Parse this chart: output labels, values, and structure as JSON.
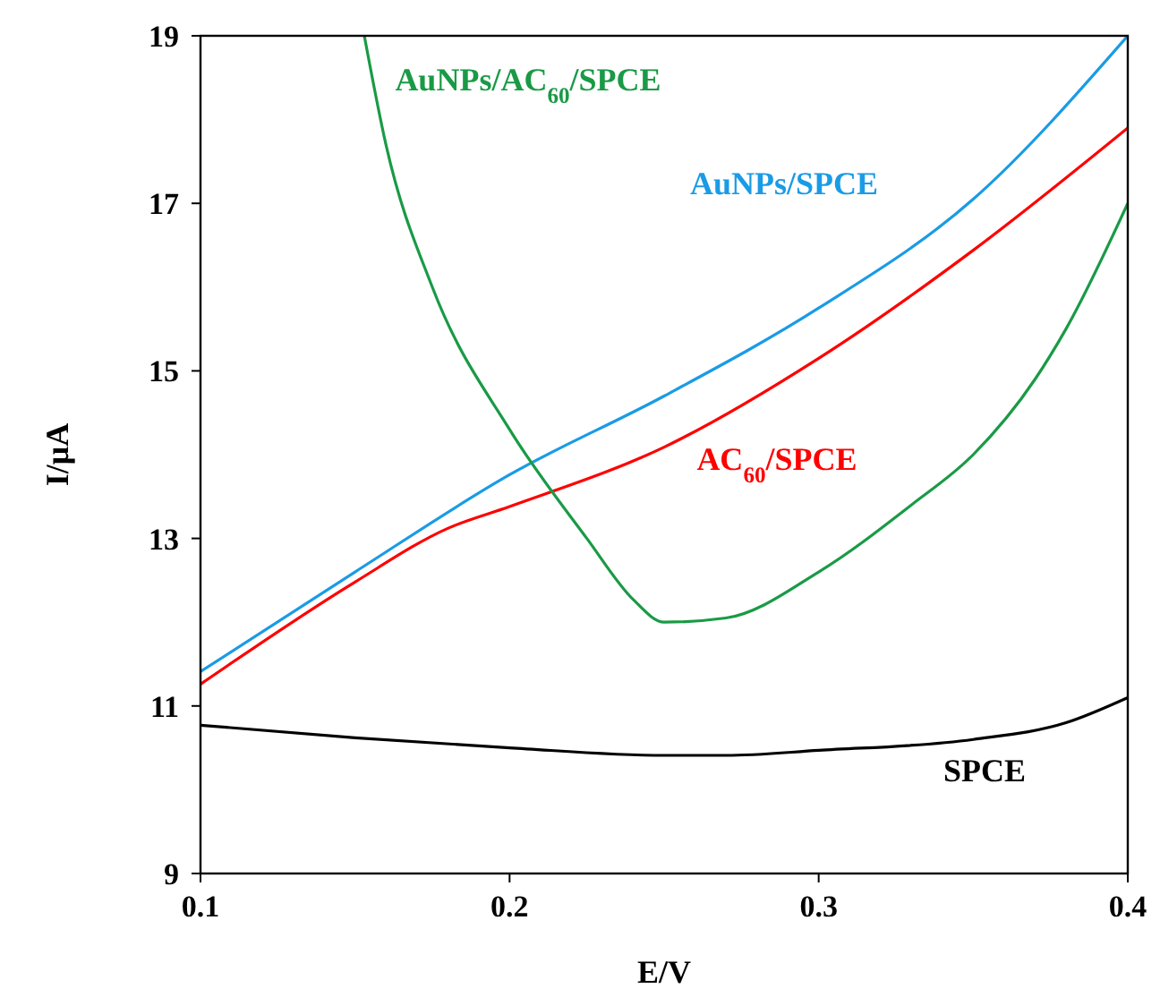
{
  "chart_data": {
    "type": "line",
    "xlabel": "E/V",
    "ylabel": "I/μA",
    "xlim": [
      0.1,
      0.4
    ],
    "xticks": [
      0.1,
      0.2,
      0.3,
      0.4
    ],
    "ylim": [
      9,
      19
    ],
    "yticks": [
      9,
      11,
      13,
      15,
      17,
      19
    ],
    "grid": false,
    "marker": "none",
    "line_style": "solid",
    "series": [
      {
        "name": "SPCE",
        "color": "#000000",
        "x": [
          0.1,
          0.15,
          0.2,
          0.25,
          0.27,
          0.3,
          0.35,
          0.38,
          0.4
        ],
        "values": [
          10.77,
          10.62,
          10.5,
          10.41,
          10.41,
          10.47,
          10.6,
          10.8,
          11.1
        ]
      },
      {
        "name": "AuNPs/SPCE",
        "color": "#1a9be6",
        "x": [
          0.1,
          0.15,
          0.2,
          0.25,
          0.3,
          0.35,
          0.4
        ],
        "values": [
          11.41,
          12.6,
          13.76,
          14.7,
          15.75,
          17.05,
          19.0
        ]
      },
      {
        "name": "AC$_{60}$/SPCE",
        "color": "#ff0000",
        "x": [
          0.1,
          0.15,
          0.18,
          0.2,
          0.25,
          0.3,
          0.35,
          0.4
        ],
        "values": [
          11.26,
          12.48,
          13.12,
          13.38,
          14.09,
          15.15,
          16.44,
          17.9
        ]
      },
      {
        "name": "AuNPs/AC$_{60}$/SPCE",
        "color": "#1a9a46",
        "x": [
          0.153,
          0.16,
          0.175,
          0.2,
          0.225,
          0.24,
          0.25,
          0.27,
          0.3,
          0.33,
          0.35,
          0.37,
          0.38,
          0.4
        ],
        "values": [
          19.0,
          17.7,
          16.0,
          14.3,
          13.0,
          12.27,
          12.0,
          12.05,
          12.6,
          13.4,
          14.0,
          14.9,
          15.5,
          17.0
        ]
      }
    ]
  }
}
